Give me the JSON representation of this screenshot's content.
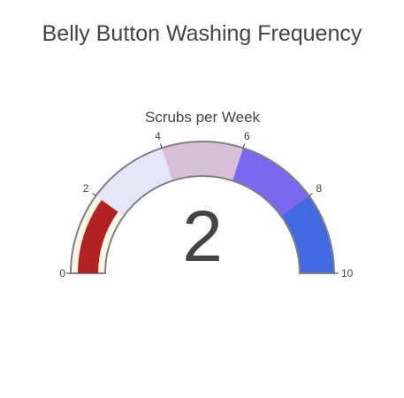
{
  "title": "Belly Button Washing Frequency",
  "chart_data": {
    "type": "gauge",
    "title": "Scrubs per Week",
    "value": 2,
    "range": [
      0,
      10
    ],
    "ticks": [
      0,
      2,
      4,
      6,
      8,
      10
    ],
    "bar_color": "#b22222",
    "steps": [
      {
        "range": [
          0,
          2
        ],
        "color": "#fdf5e6"
      },
      {
        "range": [
          2,
          4
        ],
        "color": "#e6e6fa"
      },
      {
        "range": [
          4,
          6
        ],
        "color": "#d8bfd8"
      },
      {
        "range": [
          6,
          8
        ],
        "color": "#7b68ee"
      },
      {
        "range": [
          8,
          10
        ],
        "color": "#4169e1"
      }
    ],
    "border_color": "#808080"
  }
}
